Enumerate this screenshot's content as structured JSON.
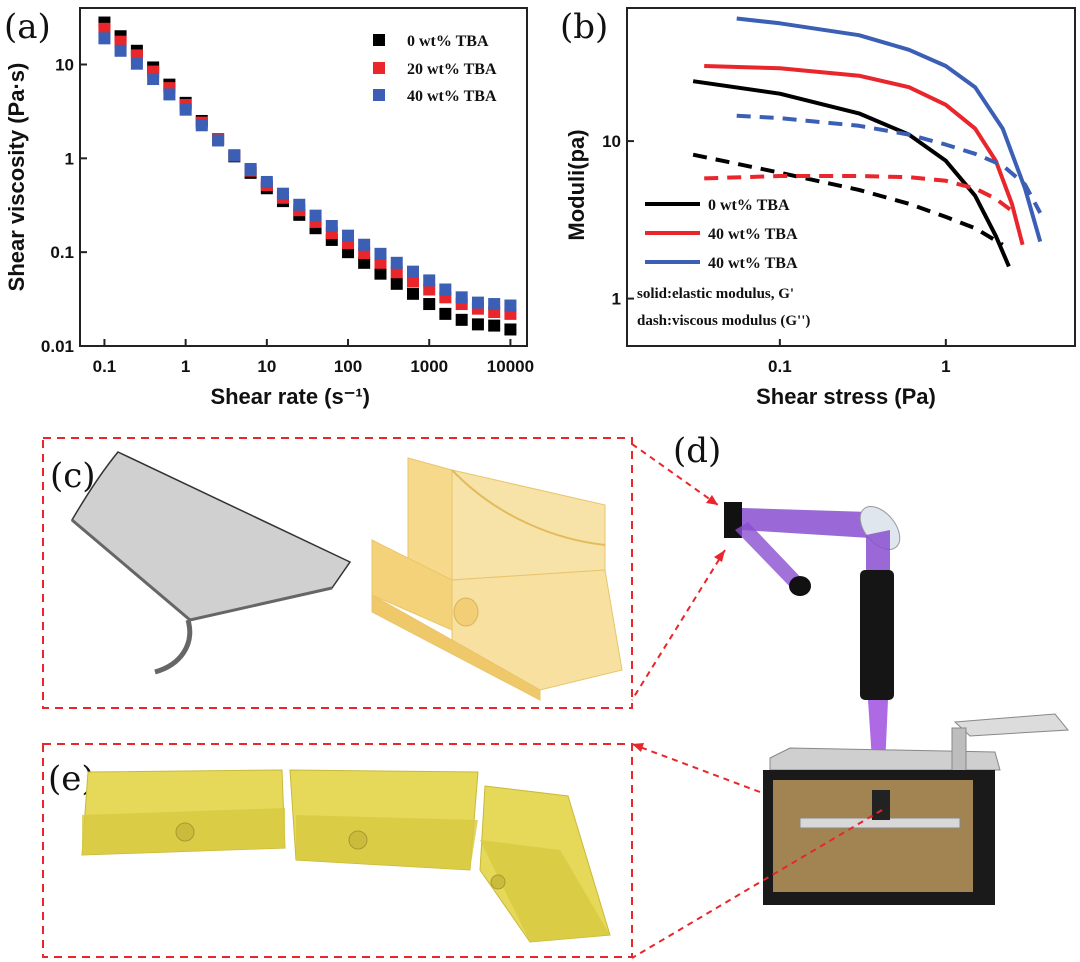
{
  "panels": {
    "a": "(a)",
    "b": "(b)",
    "c": "(c)",
    "d": "(d)",
    "e": "(e)"
  },
  "chart_data": [
    {
      "type": "scatter",
      "id": "a",
      "title": "",
      "xlabel": "Shear rate (s⁻¹)",
      "ylabel": "Shear viscosity (Pa·s)",
      "xscale": "log",
      "yscale": "log",
      "xlim": [
        0.05,
        16000
      ],
      "ylim": [
        0.01,
        40
      ],
      "xticks": [
        0.1,
        1,
        10,
        100,
        1000,
        10000
      ],
      "xtick_labels": [
        "0.1",
        "1",
        "10",
        "100",
        "1000",
        "10000"
      ],
      "yticks": [
        0.01,
        0.1,
        1,
        10
      ],
      "ytick_labels": [
        "0.01",
        "0.1",
        "1",
        "10"
      ],
      "legend_position": "top-right",
      "x": [
        0.1,
        0.158,
        0.251,
        0.398,
        0.631,
        1,
        1.58,
        2.51,
        3.98,
        6.31,
        10,
        15.8,
        25.1,
        39.8,
        63.1,
        100,
        158,
        251,
        398,
        631,
        1000,
        1580,
        2510,
        3980,
        6310,
        10000
      ],
      "series": [
        {
          "name": "0 wt% TBA",
          "color": "#000000",
          "values": [
            28,
            20,
            14,
            9.3,
            6.1,
            3.9,
            2.5,
            1.6,
            1.05,
            0.7,
            0.48,
            0.35,
            0.25,
            0.18,
            0.135,
            0.1,
            0.077,
            0.059,
            0.046,
            0.036,
            0.028,
            0.022,
            0.019,
            0.017,
            0.0165,
            0.015
          ]
        },
        {
          "name": "20 wt% TBA",
          "color": "#e8262b",
          "values": [
            24,
            17.5,
            12.5,
            8.4,
            5.6,
            3.7,
            2.4,
            1.6,
            1.07,
            0.74,
            0.52,
            0.38,
            0.28,
            0.21,
            0.16,
            0.125,
            0.098,
            0.077,
            0.061,
            0.049,
            0.04,
            0.033,
            0.028,
            0.025,
            0.023,
            0.022
          ]
        },
        {
          "name": "40 wt% TBA",
          "color": "#3a5fb5",
          "values": [
            19,
            14,
            10.2,
            7,
            4.8,
            3.3,
            2.25,
            1.55,
            1.08,
            0.77,
            0.56,
            0.42,
            0.32,
            0.245,
            0.19,
            0.15,
            0.12,
            0.096,
            0.077,
            0.062,
            0.05,
            0.04,
            0.033,
            0.029,
            0.028,
            0.027
          ]
        }
      ]
    },
    {
      "type": "line",
      "id": "b",
      "title": "",
      "xlabel": "Shear stress (Pa)",
      "ylabel": "Moduli(pa)",
      "xscale": "log",
      "yscale": "log",
      "xlim": [
        0.012,
        6
      ],
      "ylim": [
        0.5,
        70
      ],
      "xticks": [
        0.1,
        1
      ],
      "xtick_labels": [
        "0.1",
        "1"
      ],
      "yticks": [
        1,
        10
      ],
      "ytick_labels": [
        "1",
        "10"
      ],
      "legend_position": "bottom-left",
      "notes": [
        "solid:elastic modulus, G'",
        "dash:viscous modulus (G'')"
      ],
      "series": [
        {
          "name": "0 wt% TBA",
          "color": "#000000",
          "style": "solid",
          "x": [
            0.03,
            0.1,
            0.3,
            0.6,
            1.0,
            1.5,
            2.0,
            2.4
          ],
          "y": [
            24,
            20,
            15,
            11,
            7.5,
            4.5,
            2.5,
            1.6
          ]
        },
        {
          "name": "40 wt% TBA",
          "color": "#e8262b",
          "style": "solid",
          "x": [
            0.035,
            0.1,
            0.3,
            0.6,
            1.0,
            1.5,
            2.0,
            2.5,
            2.9
          ],
          "y": [
            30,
            29,
            26,
            22,
            17,
            12,
            7.5,
            4,
            2.2
          ]
        },
        {
          "name": "40 wt% TBA",
          "color": "#3a5fb5",
          "style": "solid",
          "x": [
            0.055,
            0.1,
            0.3,
            0.6,
            1.0,
            1.5,
            2.2,
            3.0,
            3.7
          ],
          "y": [
            60,
            56,
            47,
            38,
            30,
            22,
            12,
            5,
            2.3
          ]
        }
      ],
      "dashed_series": [
        {
          "name": "0 wt% TBA",
          "color": "#000000",
          "style": "dash",
          "x": [
            0.03,
            0.1,
            0.3,
            0.6,
            1.0,
            1.5,
            2.2
          ],
          "y": [
            8.2,
            6.3,
            4.9,
            4.0,
            3.3,
            2.8,
            2.2
          ]
        },
        {
          "name": "40 wt% TBA",
          "color": "#e8262b",
          "style": "dash",
          "x": [
            0.035,
            0.1,
            0.3,
            0.6,
            1.0,
            1.5,
            2.0,
            2.6
          ],
          "y": [
            5.8,
            6.0,
            6.0,
            5.9,
            5.6,
            5.0,
            4.3,
            3.5
          ]
        },
        {
          "name": "40 wt% TBA",
          "color": "#3a5fb5",
          "style": "dash",
          "x": [
            0.055,
            0.1,
            0.3,
            0.6,
            1.0,
            1.5,
            2.2,
            3.0,
            3.7
          ],
          "y": [
            14.5,
            14,
            12.5,
            11,
            9.5,
            8.3,
            7,
            5.3,
            3.5
          ]
        }
      ]
    }
  ]
}
